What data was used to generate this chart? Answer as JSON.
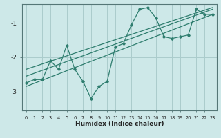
{
  "xlabel": "Humidex (Indice chaleur)",
  "bg_color": "#cde8e8",
  "grid_color": "#aacccc",
  "line_color": "#2e7d6e",
  "xlim": [
    -0.5,
    23.5
  ],
  "ylim": [
    -3.55,
    -0.45
  ],
  "yticks": [
    -3,
    -2,
    -1
  ],
  "xticks": [
    0,
    1,
    2,
    3,
    4,
    5,
    6,
    7,
    8,
    9,
    10,
    11,
    12,
    13,
    14,
    15,
    16,
    17,
    18,
    19,
    20,
    21,
    22,
    23
  ],
  "data_line": [
    [
      0,
      -2.75
    ],
    [
      1,
      -2.65
    ],
    [
      2,
      -2.65
    ],
    [
      3,
      -2.1
    ],
    [
      4,
      -2.35
    ],
    [
      5,
      -1.65
    ],
    [
      6,
      -2.35
    ],
    [
      7,
      -2.7
    ],
    [
      8,
      -3.2
    ],
    [
      9,
      -2.85
    ],
    [
      10,
      -2.7
    ],
    [
      11,
      -1.7
    ],
    [
      12,
      -1.6
    ],
    [
      13,
      -1.05
    ],
    [
      14,
      -0.6
    ],
    [
      15,
      -0.55
    ],
    [
      16,
      -0.85
    ],
    [
      17,
      -1.4
    ],
    [
      18,
      -1.45
    ],
    [
      19,
      -1.4
    ],
    [
      20,
      -1.35
    ],
    [
      21,
      -0.6
    ],
    [
      22,
      -0.75
    ],
    [
      23,
      -0.75
    ]
  ],
  "trend_line1": [
    [
      0,
      -2.85
    ],
    [
      23,
      -0.75
    ]
  ],
  "trend_line2": [
    [
      0,
      -2.55
    ],
    [
      23,
      -0.6
    ]
  ],
  "trend_line3": [
    [
      0,
      -2.35
    ],
    [
      23,
      -0.55
    ]
  ]
}
